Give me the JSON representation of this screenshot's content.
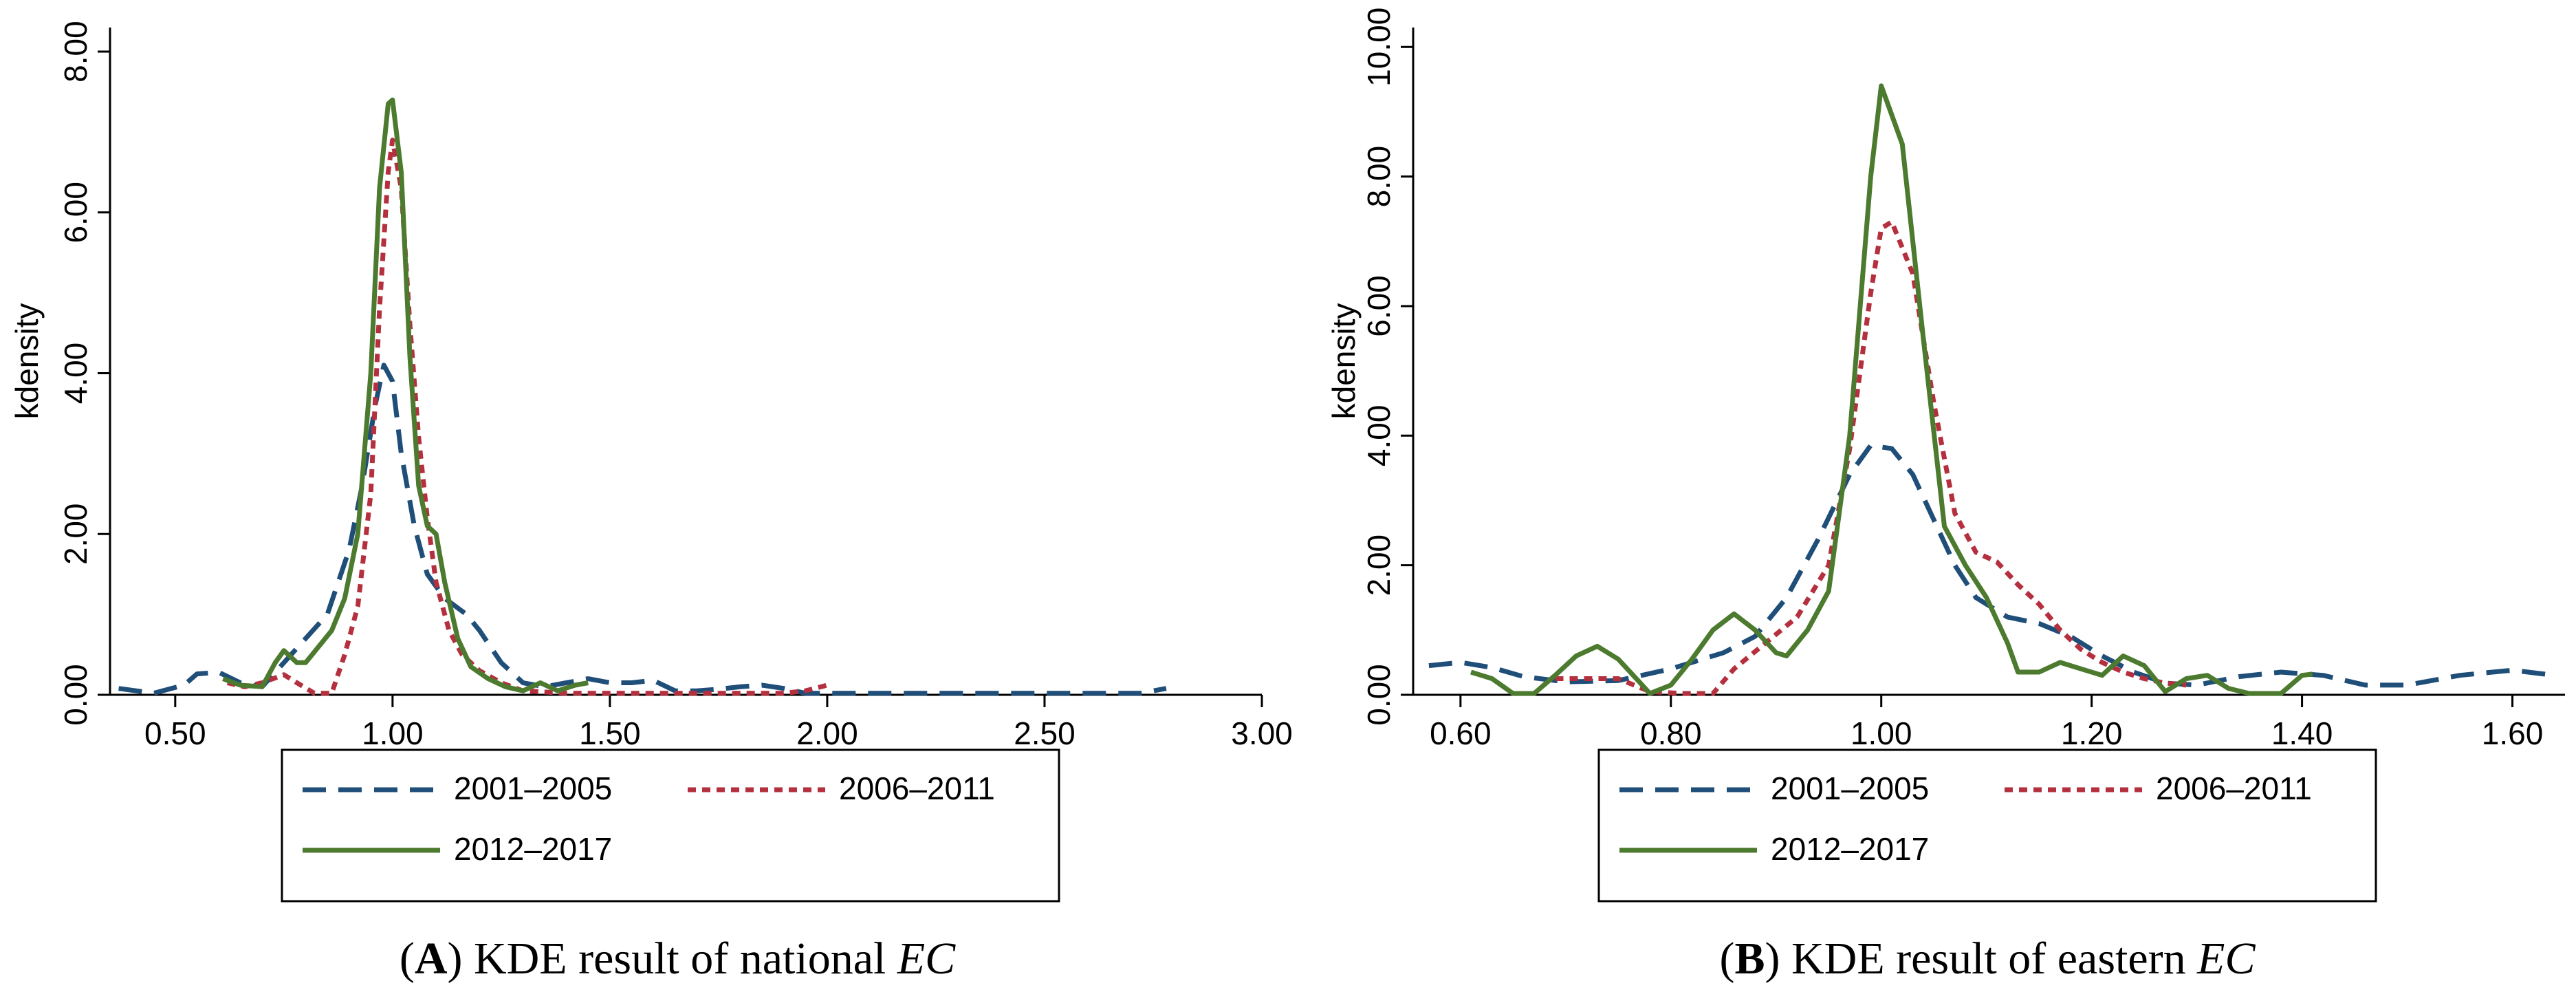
{
  "chart_data": [
    {
      "type": "line",
      "caption": {
        "open": "(",
        "letter": "A",
        "close": ")",
        "text": " KDE result of national ",
        "italic": "EC"
      },
      "ylabel": "kdensity",
      "xlim": [
        0.35,
        3.0
      ],
      "ylim": [
        0,
        8.3
      ],
      "x_ticks": [
        "0.50",
        "1.00",
        "1.50",
        "2.00",
        "2.50",
        "3.00"
      ],
      "y_ticks": [
        "0.00",
        "2.00",
        "4.00",
        "6.00",
        "8.00"
      ],
      "legend_position": "bottom",
      "series": [
        {
          "name": "2001–2005",
          "color": "#1f4e79",
          "style": "dashed",
          "points": [
            [
              0.37,
              0.08
            ],
            [
              0.45,
              0.02
            ],
            [
              0.52,
              0.12
            ],
            [
              0.55,
              0.26
            ],
            [
              0.6,
              0.28
            ],
            [
              0.65,
              0.15
            ],
            [
              0.7,
              0.1
            ],
            [
              0.75,
              0.4
            ],
            [
              0.8,
              0.7
            ],
            [
              0.85,
              1.0
            ],
            [
              0.9,
              1.8
            ],
            [
              0.93,
              2.6
            ],
            [
              0.96,
              3.6
            ],
            [
              0.98,
              4.1
            ],
            [
              1.0,
              3.9
            ],
            [
              1.02,
              3.0
            ],
            [
              1.05,
              2.1
            ],
            [
              1.08,
              1.5
            ],
            [
              1.12,
              1.2
            ],
            [
              1.17,
              1.0
            ],
            [
              1.2,
              0.8
            ],
            [
              1.25,
              0.4
            ],
            [
              1.3,
              0.15
            ],
            [
              1.35,
              0.1
            ],
            [
              1.4,
              0.15
            ],
            [
              1.45,
              0.2
            ],
            [
              1.5,
              0.15
            ],
            [
              1.55,
              0.15
            ],
            [
              1.6,
              0.18
            ],
            [
              1.65,
              0.05
            ],
            [
              1.7,
              0.05
            ],
            [
              1.75,
              0.07
            ],
            [
              1.8,
              0.1
            ],
            [
              1.85,
              0.12
            ],
            [
              1.9,
              0.08
            ],
            [
              1.95,
              0.02
            ],
            [
              2.0,
              0.02
            ],
            [
              2.2,
              0.02
            ],
            [
              2.5,
              0.02
            ],
            [
              2.72,
              0.02
            ],
            [
              2.78,
              0.08
            ]
          ]
        },
        {
          "name": "2006–2011",
          "color": "#b5303e",
          "style": "dotted",
          "points": [
            [
              0.62,
              0.15
            ],
            [
              0.66,
              0.1
            ],
            [
              0.7,
              0.15
            ],
            [
              0.75,
              0.25
            ],
            [
              0.78,
              0.15
            ],
            [
              0.82,
              0.02
            ],
            [
              0.86,
              0.02
            ],
            [
              0.89,
              0.5
            ],
            [
              0.92,
              1.1
            ],
            [
              0.95,
              2.5
            ],
            [
              0.97,
              4.8
            ],
            [
              0.99,
              6.5
            ],
            [
              1.0,
              6.9
            ],
            [
              1.02,
              6.3
            ],
            [
              1.04,
              4.6
            ],
            [
              1.06,
              3.2
            ],
            [
              1.08,
              2.2
            ],
            [
              1.1,
              1.4
            ],
            [
              1.13,
              0.8
            ],
            [
              1.16,
              0.5
            ],
            [
              1.2,
              0.3
            ],
            [
              1.25,
              0.15
            ],
            [
              1.3,
              0.05
            ],
            [
              1.4,
              0.02
            ],
            [
              1.5,
              0.02
            ],
            [
              1.7,
              0.02
            ],
            [
              1.9,
              0.02
            ],
            [
              1.95,
              0.05
            ],
            [
              2.0,
              0.12
            ]
          ]
        },
        {
          "name": "2012–2017",
          "color": "#4c7a2e",
          "style": "solid",
          "points": [
            [
              0.61,
              0.2
            ],
            [
              0.65,
              0.12
            ],
            [
              0.7,
              0.1
            ],
            [
              0.73,
              0.4
            ],
            [
              0.75,
              0.55
            ],
            [
              0.78,
              0.4
            ],
            [
              0.8,
              0.4
            ],
            [
              0.83,
              0.6
            ],
            [
              0.86,
              0.8
            ],
            [
              0.89,
              1.2
            ],
            [
              0.92,
              2.0
            ],
            [
              0.95,
              4.0
            ],
            [
              0.97,
              6.3
            ],
            [
              0.99,
              7.35
            ],
            [
              1.0,
              7.4
            ],
            [
              1.02,
              6.5
            ],
            [
              1.04,
              4.2
            ],
            [
              1.06,
              2.6
            ],
            [
              1.08,
              2.1
            ],
            [
              1.1,
              2.0
            ],
            [
              1.12,
              1.4
            ],
            [
              1.15,
              0.7
            ],
            [
              1.18,
              0.35
            ],
            [
              1.22,
              0.2
            ],
            [
              1.26,
              0.1
            ],
            [
              1.3,
              0.05
            ],
            [
              1.34,
              0.15
            ],
            [
              1.38,
              0.05
            ],
            [
              1.42,
              0.12
            ],
            [
              1.45,
              0.15
            ]
          ]
        }
      ]
    },
    {
      "type": "line",
      "caption": {
        "open": "(",
        "letter": "B",
        "close": ")",
        "text": " KDE result of eastern ",
        "italic": "EC"
      },
      "ylabel": "kdensity",
      "xlim": [
        0.555,
        1.65
      ],
      "ylim": [
        0,
        10.3
      ],
      "x_ticks": [
        "0.60",
        "0.80",
        "1.00",
        "1.20",
        "1.40",
        "1.60"
      ],
      "y_ticks": [
        "0.00",
        "2.00",
        "4.00",
        "6.00",
        "8.00",
        "10.00"
      ],
      "legend_position": "bottom",
      "series": [
        {
          "name": "2001–2005",
          "color": "#1f4e79",
          "style": "dashed",
          "points": [
            [
              0.57,
              0.45
            ],
            [
              0.6,
              0.5
            ],
            [
              0.63,
              0.42
            ],
            [
              0.66,
              0.28
            ],
            [
              0.7,
              0.2
            ],
            [
              0.75,
              0.22
            ],
            [
              0.8,
              0.4
            ],
            [
              0.85,
              0.65
            ],
            [
              0.88,
              0.9
            ],
            [
              0.91,
              1.5
            ],
            [
              0.94,
              2.4
            ],
            [
              0.97,
              3.4
            ],
            [
              0.99,
              3.85
            ],
            [
              1.01,
              3.8
            ],
            [
              1.03,
              3.4
            ],
            [
              1.05,
              2.7
            ],
            [
              1.07,
              2.0
            ],
            [
              1.09,
              1.5
            ],
            [
              1.12,
              1.2
            ],
            [
              1.15,
              1.1
            ],
            [
              1.18,
              0.9
            ],
            [
              1.21,
              0.6
            ],
            [
              1.24,
              0.35
            ],
            [
              1.27,
              0.18
            ],
            [
              1.3,
              0.15
            ],
            [
              1.34,
              0.28
            ],
            [
              1.38,
              0.35
            ],
            [
              1.42,
              0.3
            ],
            [
              1.46,
              0.15
            ],
            [
              1.5,
              0.15
            ],
            [
              1.55,
              0.3
            ],
            [
              1.6,
              0.38
            ],
            [
              1.64,
              0.3
            ]
          ]
        },
        {
          "name": "2006–2011",
          "color": "#b5303e",
          "style": "dotted",
          "points": [
            [
              0.69,
              0.25
            ],
            [
              0.72,
              0.25
            ],
            [
              0.75,
              0.25
            ],
            [
              0.78,
              0.05
            ],
            [
              0.81,
              0.02
            ],
            [
              0.84,
              0.02
            ],
            [
              0.86,
              0.4
            ],
            [
              0.89,
              0.8
            ],
            [
              0.92,
              1.2
            ],
            [
              0.95,
              2.0
            ],
            [
              0.97,
              3.8
            ],
            [
              0.99,
              6.2
            ],
            [
              1.0,
              7.2
            ],
            [
              1.01,
              7.3
            ],
            [
              1.03,
              6.5
            ],
            [
              1.05,
              4.5
            ],
            [
              1.07,
              2.8
            ],
            [
              1.09,
              2.2
            ],
            [
              1.11,
              2.05
            ],
            [
              1.13,
              1.7
            ],
            [
              1.15,
              1.4
            ],
            [
              1.17,
              1.0
            ],
            [
              1.19,
              0.7
            ],
            [
              1.21,
              0.5
            ],
            [
              1.23,
              0.35
            ],
            [
              1.25,
              0.25
            ],
            [
              1.27,
              0.18
            ],
            [
              1.29,
              0.15
            ]
          ]
        },
        {
          "name": "2012–2017",
          "color": "#4c7a2e",
          "style": "solid",
          "points": [
            [
              0.61,
              0.35
            ],
            [
              0.63,
              0.25
            ],
            [
              0.65,
              0.02
            ],
            [
              0.67,
              0.02
            ],
            [
              0.69,
              0.3
            ],
            [
              0.71,
              0.6
            ],
            [
              0.73,
              0.75
            ],
            [
              0.75,
              0.55
            ],
            [
              0.77,
              0.2
            ],
            [
              0.78,
              0.02
            ],
            [
              0.8,
              0.15
            ],
            [
              0.82,
              0.55
            ],
            [
              0.84,
              1.0
            ],
            [
              0.86,
              1.25
            ],
            [
              0.88,
              1.0
            ],
            [
              0.9,
              0.65
            ],
            [
              0.91,
              0.6
            ],
            [
              0.93,
              1.0
            ],
            [
              0.95,
              1.6
            ],
            [
              0.97,
              4.0
            ],
            [
              0.99,
              8.0
            ],
            [
              1.0,
              9.4
            ],
            [
              1.02,
              8.5
            ],
            [
              1.04,
              5.5
            ],
            [
              1.06,
              2.6
            ],
            [
              1.08,
              2.0
            ],
            [
              1.1,
              1.5
            ],
            [
              1.12,
              0.8
            ],
            [
              1.13,
              0.35
            ],
            [
              1.15,
              0.35
            ],
            [
              1.17,
              0.5
            ],
            [
              1.19,
              0.4
            ],
            [
              1.21,
              0.3
            ],
            [
              1.23,
              0.6
            ],
            [
              1.25,
              0.45
            ],
            [
              1.27,
              0.05
            ],
            [
              1.29,
              0.25
            ],
            [
              1.31,
              0.3
            ],
            [
              1.33,
              0.1
            ],
            [
              1.35,
              0.02
            ],
            [
              1.38,
              0.02
            ],
            [
              1.4,
              0.3
            ],
            [
              1.41,
              0.32
            ]
          ]
        }
      ]
    }
  ]
}
